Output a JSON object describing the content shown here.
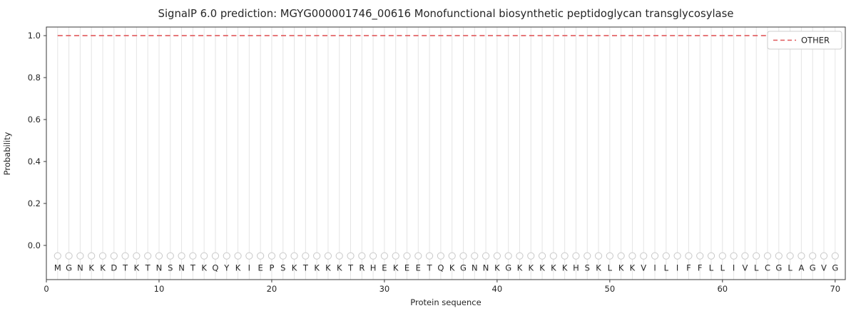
{
  "chart_data": {
    "type": "line",
    "title": "SignalP 6.0 prediction: MGYG000001746_00616 Monofunctional biosynthetic peptidoglycan transglycosylase",
    "xlabel": "Protein sequence",
    "ylabel": "Probability",
    "xlim": [
      0,
      70.9
    ],
    "ylim": [
      -0.163,
      1.041
    ],
    "x_ticks": [
      0,
      10,
      20,
      30,
      40,
      50,
      60,
      70
    ],
    "y_ticks": [
      0.0,
      0.2,
      0.4,
      0.6,
      0.8,
      1.0
    ],
    "grid": "vertical-line-per-residue",
    "sequence": "MGNKKDTKTNSNTKQYKIEPSKTKKKTRHEKEETQKGNNKGKKKKKHSKLKKVILIFFLLIVLCGLAGVG",
    "legend": {
      "position": "upper right",
      "entries": [
        {
          "label": "OTHER",
          "color": "#e0585b",
          "dash": true
        }
      ]
    },
    "series": [
      {
        "name": "OTHER",
        "style": "dashed-line",
        "color": "#e0585b",
        "value_constant": 1.0
      },
      {
        "name": "residue-markers",
        "style": "circle-markers",
        "color": "#c9c9c9",
        "value_constant": -0.05
      }
    ],
    "colors": {
      "background": "#ffffff",
      "gridline": "#e4e4e4",
      "spine": "#3a3a3a",
      "marker_outline": "#c9c9c9",
      "text": "#262626"
    }
  }
}
